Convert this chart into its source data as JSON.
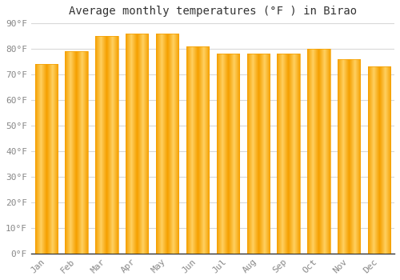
{
  "title": "Average monthly temperatures (°F ) in Birao",
  "months": [
    "Jan",
    "Feb",
    "Mar",
    "Apr",
    "May",
    "Jun",
    "Jul",
    "Aug",
    "Sep",
    "Oct",
    "Nov",
    "Dec"
  ],
  "values": [
    74,
    79,
    85,
    86,
    86,
    81,
    78,
    78,
    78,
    80,
    76,
    73
  ],
  "bar_color_center": "#FFD060",
  "bar_color_edge": "#F5A000",
  "ylim": [
    0,
    90
  ],
  "yticks": [
    0,
    10,
    20,
    30,
    40,
    50,
    60,
    70,
    80,
    90
  ],
  "ytick_labels": [
    "0°F",
    "10°F",
    "20°F",
    "30°F",
    "40°F",
    "50°F",
    "60°F",
    "70°F",
    "80°F",
    "90°F"
  ],
  "background_color": "#ffffff",
  "grid_color": "#d8d8d8",
  "title_fontsize": 10,
  "tick_fontsize": 8,
  "bar_width": 0.75
}
